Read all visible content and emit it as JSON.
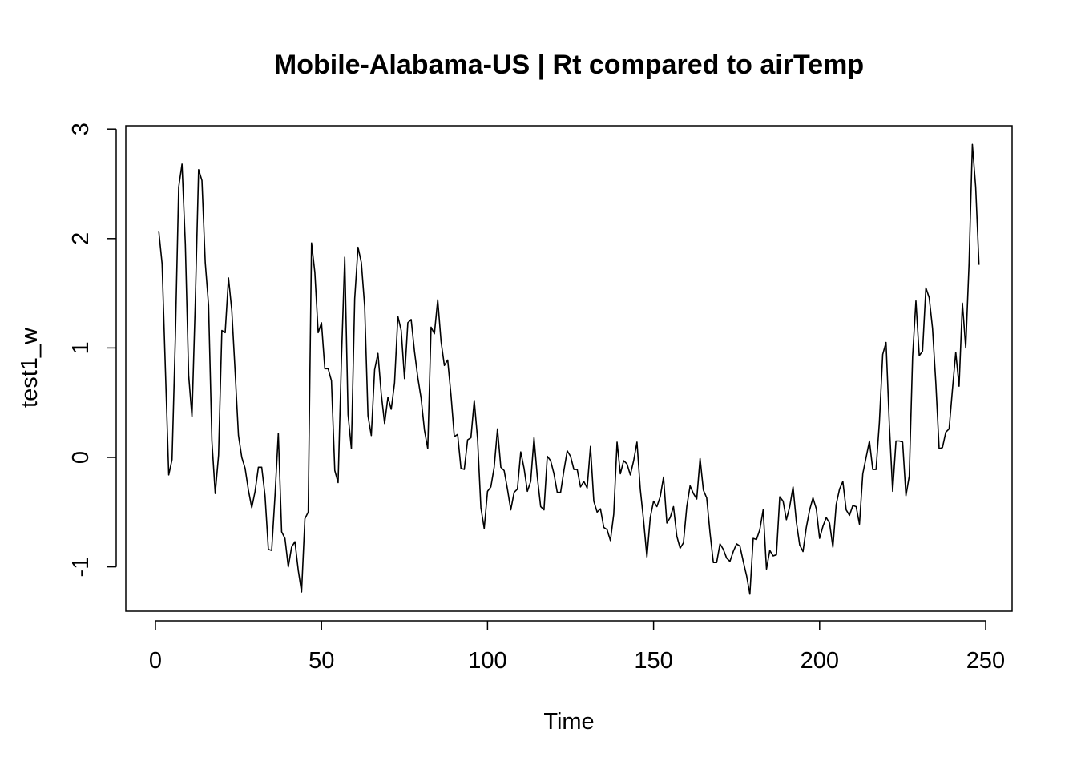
{
  "chart_data": {
    "type": "line",
    "title": "Mobile-Alabama-US | Rt compared to airTemp",
    "xlabel": "Time",
    "ylabel": "test1_w",
    "xlim": [
      1,
      248
    ],
    "ylim": [
      -1.25,
      2.87
    ],
    "x_ticks": [
      0,
      50,
      100,
      150,
      200,
      250
    ],
    "y_ticks": [
      -1,
      0,
      1,
      2,
      3
    ],
    "grid": false,
    "legend": "none",
    "series": [
      {
        "color": "#000000",
        "x_start": 1,
        "x_step": 1,
        "values": [
          2.07,
          1.77,
          0.8,
          -0.16,
          -0.02,
          1.1,
          2.47,
          2.68,
          1.95,
          0.75,
          0.37,
          1.42,
          2.63,
          2.53,
          1.78,
          1.39,
          0.15,
          -0.33,
          0.02,
          1.16,
          1.14,
          1.64,
          1.34,
          0.78,
          0.2,
          0.0,
          -0.1,
          -0.3,
          -0.46,
          -0.31,
          -0.09,
          -0.09,
          -0.35,
          -0.84,
          -0.85,
          -0.35,
          0.22,
          -0.68,
          -0.74,
          -1.0,
          -0.82,
          -0.77,
          -1.03,
          -1.23,
          -0.56,
          -0.5,
          1.96,
          1.69,
          1.14,
          1.23,
          0.81,
          0.81,
          0.7,
          -0.12,
          -0.23,
          0.89,
          1.83,
          0.39,
          0.08,
          1.45,
          1.92,
          1.78,
          1.38,
          0.38,
          0.2,
          0.8,
          0.95,
          0.58,
          0.31,
          0.55,
          0.44,
          0.68,
          1.29,
          1.16,
          0.72,
          1.23,
          1.26,
          0.97,
          0.73,
          0.54,
          0.25,
          0.08,
          1.19,
          1.13,
          1.44,
          1.06,
          0.84,
          0.89,
          0.57,
          0.19,
          0.21,
          -0.1,
          -0.11,
          0.16,
          0.18,
          0.52,
          0.17,
          -0.46,
          -0.65,
          -0.31,
          -0.27,
          -0.09,
          0.26,
          -0.09,
          -0.12,
          -0.29,
          -0.48,
          -0.32,
          -0.29,
          0.05,
          -0.1,
          -0.31,
          -0.22,
          0.18,
          -0.18,
          -0.45,
          -0.48,
          0.01,
          -0.03,
          -0.15,
          -0.32,
          -0.32,
          -0.12,
          0.06,
          0.01,
          -0.11,
          -0.11,
          -0.27,
          -0.22,
          -0.28,
          0.1,
          -0.4,
          -0.5,
          -0.47,
          -0.64,
          -0.66,
          -0.76,
          -0.52,
          0.14,
          -0.15,
          -0.03,
          -0.06,
          -0.16,
          -0.03,
          0.14,
          -0.29,
          -0.58,
          -0.91,
          -0.55,
          -0.4,
          -0.45,
          -0.36,
          -0.18,
          -0.6,
          -0.55,
          -0.45,
          -0.72,
          -0.83,
          -0.78,
          -0.45,
          -0.26,
          -0.33,
          -0.38,
          -0.01,
          -0.3,
          -0.37,
          -0.69,
          -0.96,
          -0.96,
          -0.79,
          -0.84,
          -0.92,
          -0.95,
          -0.86,
          -0.79,
          -0.81,
          -0.95,
          -1.08,
          -1.25,
          -0.74,
          -0.75,
          -0.66,
          -0.48,
          -1.02,
          -0.85,
          -0.9,
          -0.89,
          -0.36,
          -0.4,
          -0.57,
          -0.45,
          -0.27,
          -0.59,
          -0.8,
          -0.86,
          -0.64,
          -0.48,
          -0.37,
          -0.47,
          -0.74,
          -0.63,
          -0.55,
          -0.6,
          -0.82,
          -0.43,
          -0.29,
          -0.22,
          -0.48,
          -0.53,
          -0.44,
          -0.45,
          -0.61,
          -0.15,
          0.0,
          0.15,
          -0.11,
          -0.11,
          0.32,
          0.94,
          1.05,
          0.3,
          -0.31,
          0.15,
          0.15,
          0.14,
          -0.35,
          -0.17,
          0.92,
          1.43,
          0.93,
          0.97,
          1.55,
          1.46,
          1.18,
          0.68,
          0.08,
          0.09,
          0.23,
          0.26,
          0.62,
          0.96,
          0.65,
          1.41,
          1.0,
          1.77,
          2.86,
          2.47,
          1.76
        ]
      }
    ]
  }
}
